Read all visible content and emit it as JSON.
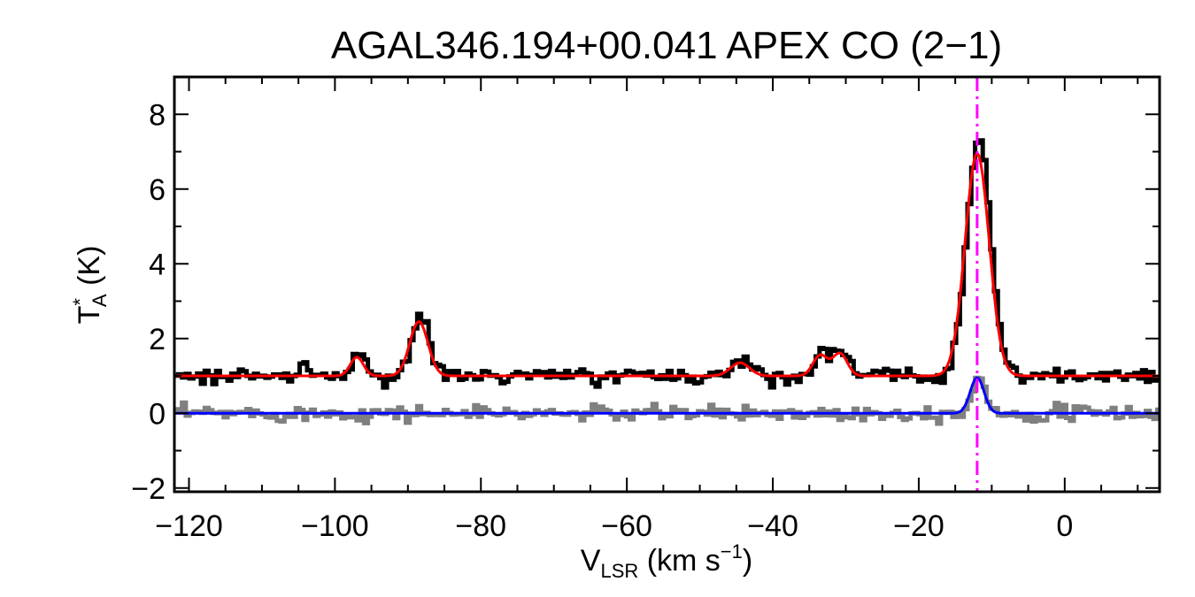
{
  "chart_data": {
    "type": "line",
    "title": "AGAL346.194+00.041  APEX CO (2−1)",
    "xlabel": {
      "main": "V",
      "sub": "LSR",
      "rest": " (km s",
      "sup": "−1",
      "close": ")"
    },
    "ylabel": {
      "main": "T",
      "sup": "*",
      "sub": "A",
      "rest": " (K)"
    },
    "xlim": [
      -122,
      13
    ],
    "ylim": [
      -2.1,
      9
    ],
    "xticks": [
      {
        "v": -120,
        "label": "−120"
      },
      {
        "v": -100,
        "label": "−100"
      },
      {
        "v": -80,
        "label": "−80"
      },
      {
        "v": -60,
        "label": "−60"
      },
      {
        "v": -40,
        "label": "−40"
      },
      {
        "v": -20,
        "label": "−20"
      },
      {
        "v": 0,
        "label": "0"
      }
    ],
    "yticks": [
      {
        "v": -2,
        "label": "−2"
      },
      {
        "v": 0,
        "label": "0"
      },
      {
        "v": 2,
        "label": "2"
      },
      {
        "v": 4,
        "label": "4"
      },
      {
        "v": 6,
        "label": "6"
      },
      {
        "v": 8,
        "label": "8"
      }
    ],
    "vline": {
      "x": -12,
      "color": "#ff00ff",
      "style": "dash-dot"
    },
    "series": [
      {
        "role": "observed-spectrum",
        "style": "histogram",
        "color": "#000000",
        "baseline": 1.0,
        "noise": 0.1,
        "components": [
          {
            "center": -104.5,
            "amp": 0.35,
            "sigma": 0.5
          },
          {
            "center": -97,
            "amp": 0.55,
            "sigma": 0.9
          },
          {
            "center": -88.5,
            "amp": 1.6,
            "sigma": 1.2
          },
          {
            "center": -44.5,
            "amp": 0.4,
            "sigma": 1.3
          },
          {
            "center": -33.5,
            "amp": 0.65,
            "sigma": 1.0
          },
          {
            "center": -30.8,
            "amp": 0.7,
            "sigma": 1.0
          },
          {
            "center": -12,
            "amp": 6.5,
            "sigma": 1.6
          }
        ]
      },
      {
        "role": "gaussian-fit",
        "style": "line",
        "color": "#ff0000",
        "baseline": 1.0,
        "components": [
          {
            "center": -97,
            "amp": 0.5,
            "sigma": 0.9
          },
          {
            "center": -88.5,
            "amp": 1.45,
            "sigma": 1.25
          },
          {
            "center": -44.5,
            "amp": 0.35,
            "sigma": 1.3
          },
          {
            "center": -33.5,
            "amp": 0.55,
            "sigma": 1.0
          },
          {
            "center": -30.8,
            "amp": 0.6,
            "sigma": 1.0
          },
          {
            "center": -12,
            "amp": 5.95,
            "sigma": 1.65
          }
        ]
      },
      {
        "role": "residual-spectrum",
        "style": "histogram",
        "color": "#808080",
        "baseline": 0.0,
        "noise": 0.1,
        "components": [
          {
            "center": -12,
            "amp": 1.0,
            "sigma": 0.9
          }
        ]
      },
      {
        "role": "residual-fit",
        "style": "line",
        "color": "#0000ff",
        "baseline": 0.0,
        "components": [
          {
            "center": -12,
            "amp": 0.95,
            "sigma": 0.95
          }
        ]
      }
    ]
  }
}
